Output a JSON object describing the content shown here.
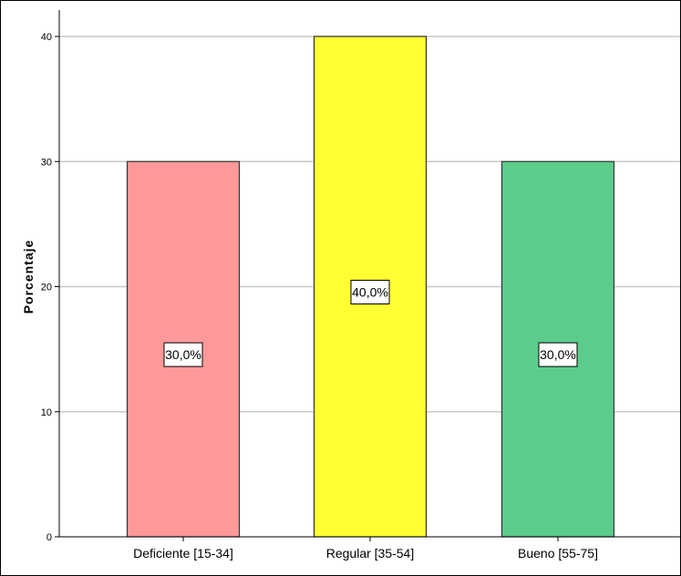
{
  "chart_data": {
    "type": "bar",
    "categories": [
      "Deficiente [15-34]",
      "Regular [35-54]",
      "Bueno [55-75]"
    ],
    "values": [
      30,
      40,
      30
    ],
    "data_labels": [
      "30,0%",
      "40,0%",
      "30,0%"
    ],
    "bar_colors": [
      "#ff9999",
      "#ffff33",
      "#5ccc8c"
    ],
    "title": "",
    "xlabel": "",
    "ylabel": "Porcentaje",
    "ylim": [
      0,
      40
    ],
    "yticks": [
      "0",
      "10",
      "20",
      "30",
      "40"
    ],
    "grid": true
  }
}
